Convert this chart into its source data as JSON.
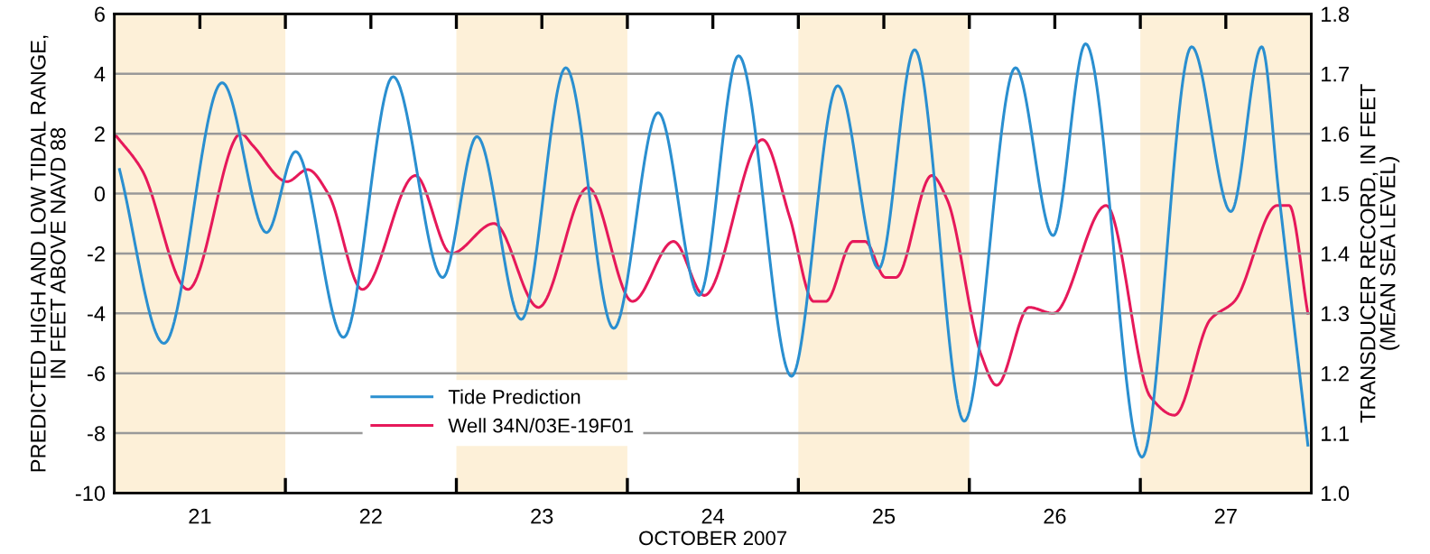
{
  "chart_data": {
    "type": "line",
    "xlabel": "OCTOBER 2007",
    "ylabel": "PREDICTED HIGH AND LOW TIDAL RANGE,\nIN FEET ABOVE NAVD 88",
    "y2label": "TRANSDUCER RECORD, IN FEET\n(MEAN SEA LEVEL)",
    "series": [
      {
        "name": "Tide Prediction",
        "color": "#2a8fd0",
        "x": [
          20.53,
          20.79,
          21.13,
          21.39,
          21.56,
          21.84,
          22.13,
          22.42,
          22.62,
          22.88,
          23.14,
          23.42,
          23.68,
          23.92,
          24.15,
          24.46,
          24.73,
          24.97,
          25.18,
          25.47,
          25.77,
          25.99,
          26.18,
          26.51,
          26.8,
          27.03,
          27.21,
          27.31,
          27.48
        ],
        "values": [
          0.8,
          -5.0,
          3.7,
          -1.3,
          1.4,
          -4.8,
          3.9,
          -2.8,
          1.9,
          -4.2,
          4.2,
          -4.5,
          2.7,
          -3.4,
          4.6,
          -6.1,
          3.6,
          -2.5,
          4.8,
          -7.6,
          4.2,
          -1.4,
          5.0,
          -8.8,
          4.9,
          -0.6,
          4.9,
          0.0,
          -8.4
        ]
      },
      {
        "name": "Well 34N/03E-19F01",
        "color": "#e6195a",
        "axis": "y2",
        "x": [
          20.5,
          20.66,
          20.93,
          21.24,
          21.31,
          21.51,
          21.63,
          21.75,
          21.95,
          22.26,
          22.47,
          22.72,
          22.98,
          23.27,
          23.53,
          23.77,
          23.95,
          24.29,
          24.45,
          24.59,
          24.66,
          24.82,
          24.89,
          25.01,
          25.07,
          25.28,
          25.37,
          25.57,
          25.66,
          25.85,
          25.99,
          26.3,
          26.56,
          26.7,
          26.91,
          27.05,
          27.3,
          27.37,
          27.48
        ],
        "values": [
          1.6,
          1.54,
          1.34,
          1.6,
          1.58,
          1.52,
          1.54,
          1.5,
          1.34,
          1.53,
          1.4,
          1.45,
          1.31,
          1.51,
          1.32,
          1.42,
          1.33,
          1.59,
          1.46,
          1.32,
          1.32,
          1.42,
          1.42,
          1.36,
          1.36,
          1.53,
          1.49,
          1.23,
          1.18,
          1.31,
          1.3,
          1.48,
          1.16,
          1.13,
          1.29,
          1.32,
          1.48,
          1.48,
          1.3
        ]
      }
    ],
    "xlim": [
      20.5,
      27.5
    ],
    "xticks": [
      {
        "value": 21,
        "label": "21"
      },
      {
        "value": 21.5,
        "label": null
      },
      {
        "value": 22,
        "label": "22"
      },
      {
        "value": 22.5,
        "label": null
      },
      {
        "value": 23,
        "label": "23"
      },
      {
        "value": 23.5,
        "label": null
      },
      {
        "value": 24,
        "label": "24"
      },
      {
        "value": 24.5,
        "label": null
      },
      {
        "value": 25,
        "label": "25"
      },
      {
        "value": 25.5,
        "label": null
      },
      {
        "value": 26,
        "label": "26"
      },
      {
        "value": 26.5,
        "label": null
      },
      {
        "value": 27,
        "label": "27"
      }
    ],
    "ylim": [
      -10,
      6
    ],
    "yticks": [
      -10,
      -8,
      -6,
      -4,
      -2,
      0,
      2,
      4,
      6
    ],
    "y2lim": [
      1.0,
      1.8
    ],
    "y2ticks": [
      {
        "value": 1.0,
        "label": "1.0"
      },
      1.1,
      1.2,
      1.3,
      1.4,
      1.5,
      1.6,
      1.7,
      1.8
    ],
    "bands": [
      {
        "axis": "x",
        "from": 20.5,
        "to": 21.5,
        "color": "#fdf0d8"
      },
      {
        "axis": "x",
        "from": 22.5,
        "to": 23.5,
        "color": "#fdf0d8"
      },
      {
        "axis": "x",
        "from": 24.5,
        "to": 25.5,
        "color": "#fdf0d8"
      },
      {
        "axis": "x",
        "from": 26.5,
        "to": 27.5,
        "color": "#fdf0d8"
      }
    ],
    "grid": "y",
    "legend": "bottom left",
    "line_style": "solid",
    "marker": "none"
  }
}
